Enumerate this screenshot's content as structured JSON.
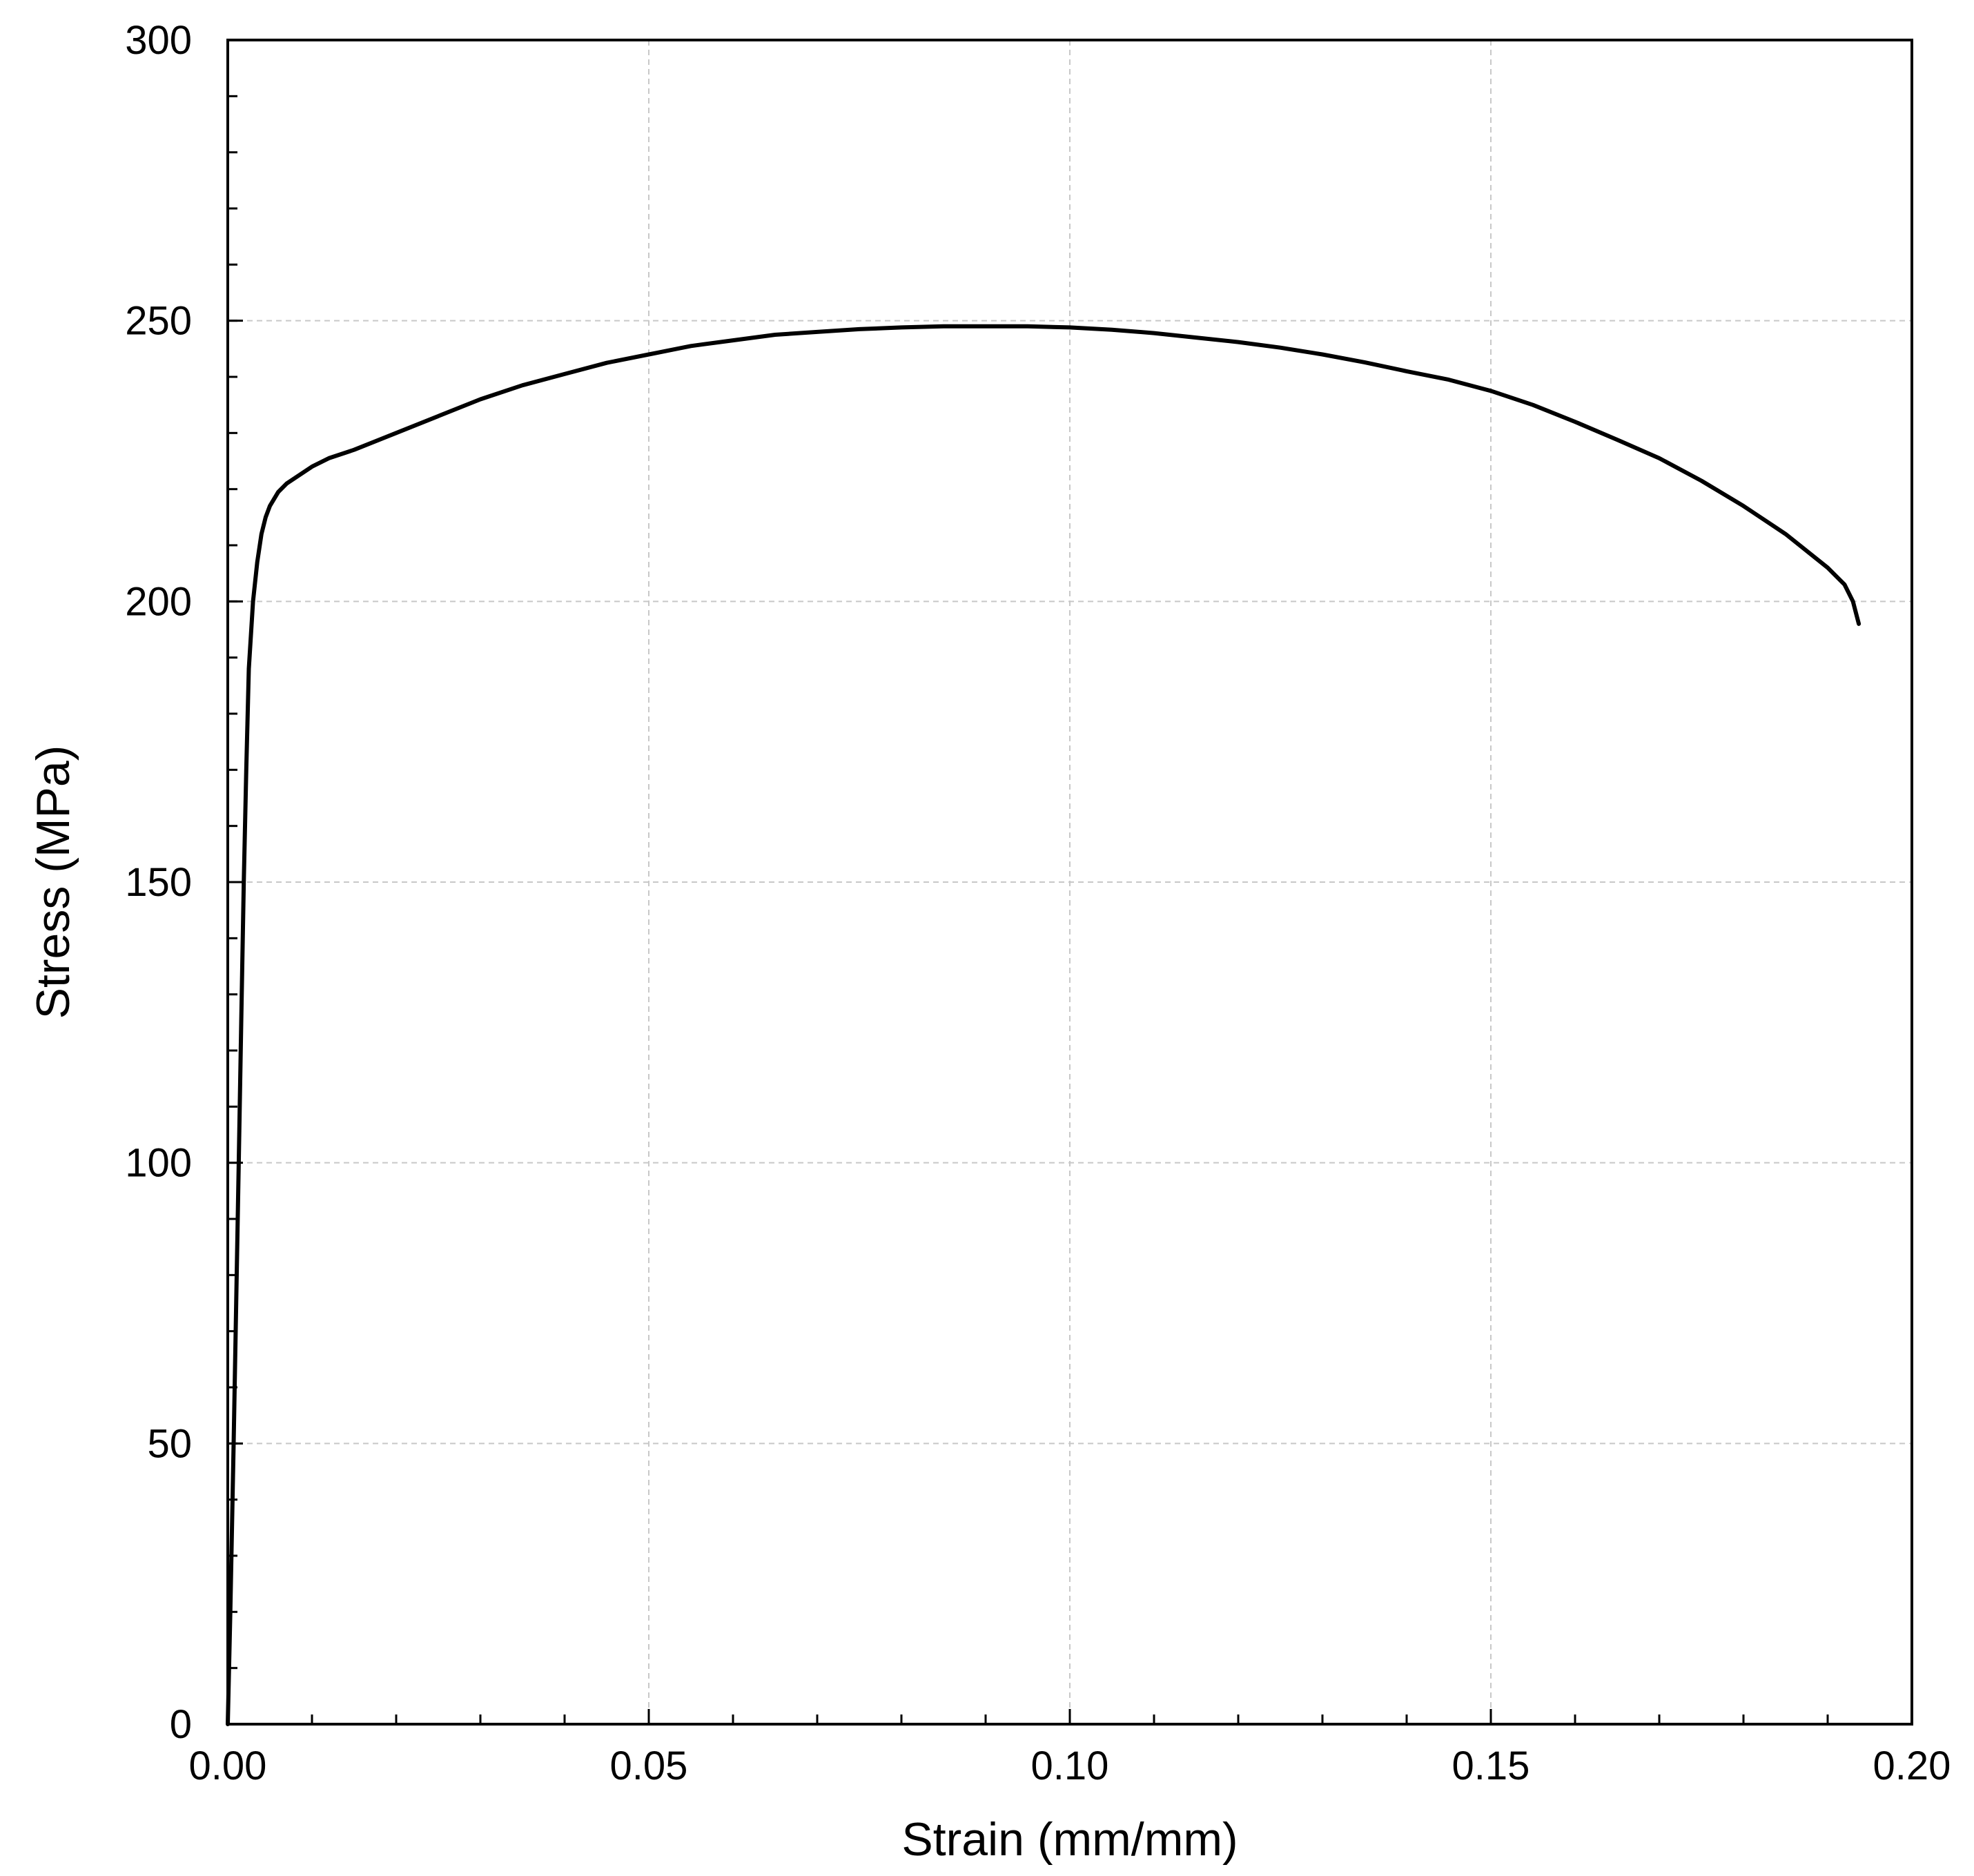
{
  "chart_data": {
    "type": "line",
    "title": "",
    "xlabel": "Strain (mm/mm)",
    "ylabel": "Stress (MPa)",
    "xlim": [
      0,
      0.2
    ],
    "ylim": [
      0,
      300
    ],
    "x_ticks": [
      0,
      0.05,
      0.1,
      0.15,
      0.2
    ],
    "x_tick_labels": [
      "0.00",
      "0.05",
      "0.10",
      "0.15",
      "0.20"
    ],
    "y_ticks": [
      0,
      50,
      100,
      150,
      200,
      250,
      300
    ],
    "y_tick_labels": [
      "0",
      "50",
      "100",
      "150",
      "200",
      "250",
      "300"
    ],
    "x_minor_step": 0.01,
    "y_minor_step": 10,
    "grid": true,
    "legend": "none",
    "line_color": "#000000",
    "grid_color": "#c8c8c8",
    "series": [
      {
        "x": [
          0,
          0.0003,
          0.0007,
          0.001,
          0.0013,
          0.0016,
          0.0019,
          0.0022,
          0.0025,
          0.003,
          0.0035,
          0.004,
          0.0045,
          0.005,
          0.006,
          0.007,
          0.008,
          0.01,
          0.012,
          0.015,
          0.02,
          0.025,
          0.03,
          0.035,
          0.04,
          0.045,
          0.05,
          0.055,
          0.06,
          0.065,
          0.07,
          0.075,
          0.08,
          0.085,
          0.09,
          0.095,
          0.1,
          0.105,
          0.11,
          0.115,
          0.12,
          0.125,
          0.13,
          0.135,
          0.14,
          0.145,
          0.15,
          0.155,
          0.16,
          0.165,
          0.17,
          0.175,
          0.18,
          0.185,
          0.19,
          0.192,
          0.193,
          0.1937
        ],
        "y": [
          0,
          20,
          50,
          75,
          100,
          125,
          150,
          170,
          188,
          200,
          207,
          212,
          215,
          217,
          219.5,
          221,
          222,
          224,
          225.5,
          227,
          230,
          233,
          236,
          238.5,
          240.5,
          242.5,
          244,
          245.5,
          246.5,
          247.5,
          248,
          248.5,
          248.8,
          249,
          249,
          249,
          248.8,
          248.4,
          247.8,
          247,
          246.2,
          245.2,
          244,
          242.6,
          241,
          239.5,
          237.5,
          235,
          232,
          228.8,
          225.5,
          221.5,
          217,
          212,
          206,
          203,
          200,
          196
        ]
      }
    ]
  }
}
